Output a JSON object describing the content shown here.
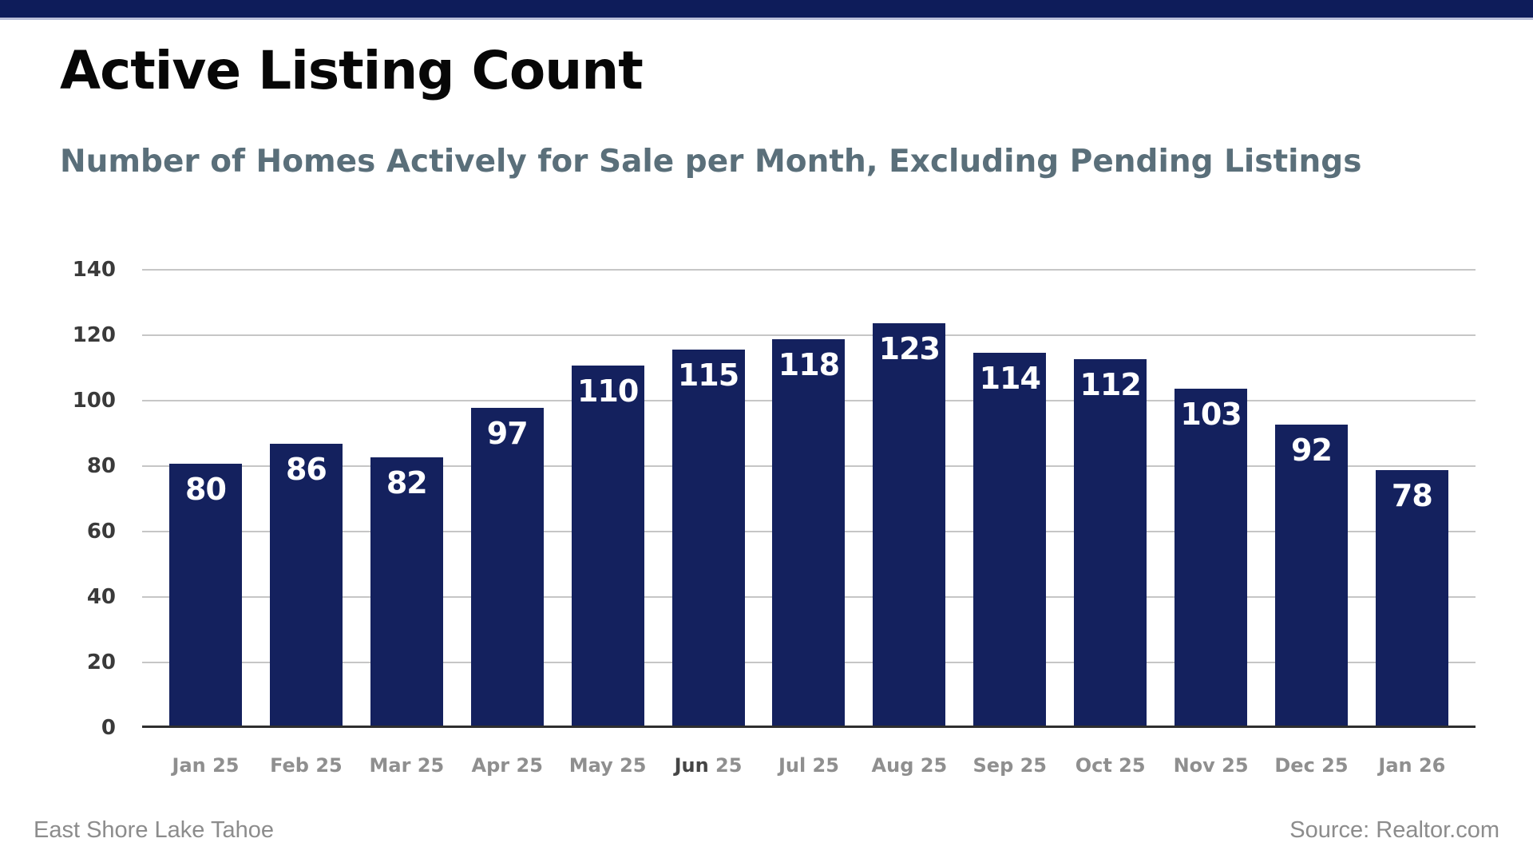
{
  "header": {
    "title": "Active Listing Count",
    "subtitle": "Number of Homes Actively for Sale per Month, Excluding Pending Listings"
  },
  "footer": {
    "left": "East Shore Lake Tahoe",
    "right": "Source: Realtor.com"
  },
  "colors": {
    "banner": "#0e1c5a",
    "banner_border": "#b9bed8",
    "bar": "#14215e",
    "bar_value_text": "#ffffff",
    "subtitle_text": "#5a6f7a",
    "gridline": "#c6c6c6",
    "axis_baseline": "#2f2f2f",
    "y_tick_text": "#3a3a3a",
    "x_tick_text": "#8f8f8f",
    "footer_text": "#8c8c8c"
  },
  "chart_data": {
    "type": "bar",
    "title": "Active Listing Count",
    "subtitle": "Number of Homes Actively for Sale per Month, Excluding Pending Listings",
    "categories": [
      "Jan 25",
      "Feb 25",
      "Mar 25",
      "Apr 25",
      "May 25",
      "Jun 25",
      "Jul 25",
      "Aug 25",
      "Sep 25",
      "Oct 25",
      "Nov 25",
      "Dec 25",
      "Jan 26"
    ],
    "values": [
      80,
      86,
      82,
      97,
      110,
      115,
      118,
      123,
      114,
      112,
      103,
      92,
      78
    ],
    "xlabel": "",
    "ylabel": "",
    "ylim": [
      0,
      140
    ],
    "yticks": [
      0,
      20,
      40,
      60,
      80,
      100,
      120,
      140
    ],
    "grid": true,
    "legend_position": "none",
    "value_labels": "inside-top",
    "highlighted_tick": {
      "index": 5,
      "part": "Jun",
      "color": "#454545"
    }
  }
}
